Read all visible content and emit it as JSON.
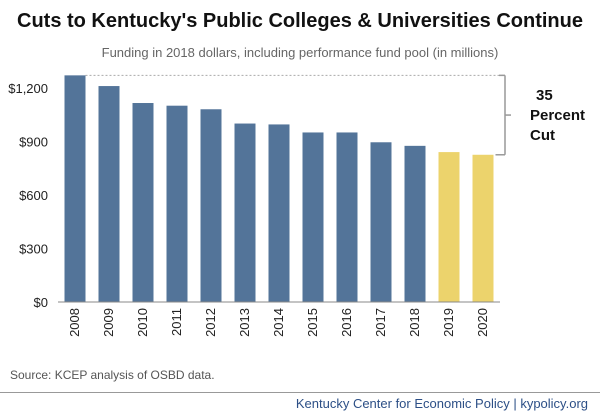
{
  "chart_data": {
    "type": "bar",
    "title": "Cuts to Kentucky's Public Colleges & Universities Continue",
    "subtitle": "Funding in 2018 dollars, including performance fund pool (in millions)",
    "categories": [
      "2008",
      "2009",
      "2010",
      "2011",
      "2012",
      "2013",
      "2014",
      "2015",
      "2016",
      "2017",
      "2018",
      "2019",
      "2020"
    ],
    "values": [
      1270,
      1210,
      1115,
      1100,
      1080,
      1000,
      995,
      950,
      950,
      895,
      875,
      840,
      825
    ],
    "ylim": [
      0,
      1300
    ],
    "yticks": [
      0,
      300,
      600,
      900,
      1200
    ],
    "ytick_labels": [
      "$0",
      "$300",
      "$600",
      "$900",
      "$1,200"
    ],
    "grid": false,
    "colors": {
      "historical": "#537499",
      "projected": "#ecd36c",
      "bracket": "#999999"
    },
    "projected_from_index": 11,
    "annotation": {
      "lines": [
        "35",
        "Percent",
        "Cut"
      ]
    }
  },
  "source": "Source: KCEP analysis of OSBD data.",
  "footer": "Kentucky Center for Economic Policy | kypolicy.org"
}
